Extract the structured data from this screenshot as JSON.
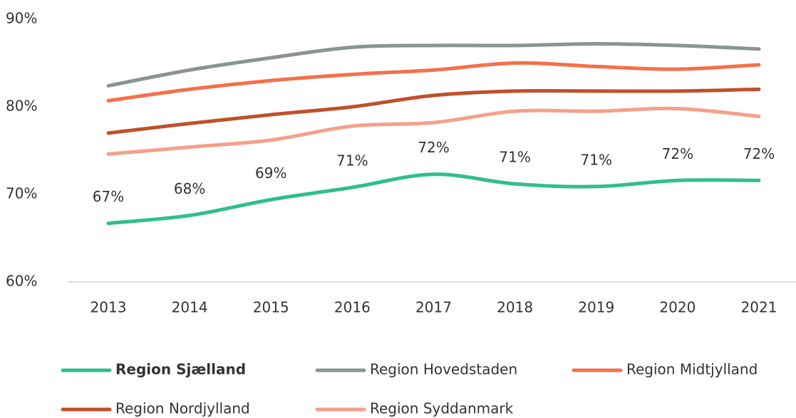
{
  "chart_data": {
    "type": "line",
    "x": [
      2013,
      2014,
      2015,
      2016,
      2017,
      2018,
      2019,
      2020,
      2021
    ],
    "ylim": [
      60,
      90
    ],
    "yticks": [
      {
        "value": 60,
        "label": "60%"
      },
      {
        "value": 70,
        "label": "70%"
      },
      {
        "value": 80,
        "label": "80%"
      },
      {
        "value": 90,
        "label": "90%"
      }
    ],
    "series": [
      {
        "name": "Region Sjælland",
        "color": "#2fbf8a",
        "values": [
          66.7,
          67.6,
          69.4,
          70.8,
          72.3,
          71.2,
          70.9,
          71.6,
          71.6
        ],
        "value_labels": [
          "67%",
          "68%",
          "69%",
          "71%",
          "72%",
          "71%",
          "71%",
          "72%",
          "72%"
        ]
      },
      {
        "name": "Region Hovedstaden",
        "color": "#8a9490",
        "values": [
          82.4,
          84.2,
          85.6,
          86.8,
          87.0,
          87.0,
          87.2,
          87.0,
          86.6
        ]
      },
      {
        "name": "Region Midtjylland",
        "color": "#f4704a",
        "values": [
          80.7,
          82.0,
          83.0,
          83.7,
          84.2,
          85.0,
          84.6,
          84.3,
          84.8
        ]
      },
      {
        "name": "Region Nordjylland",
        "color": "#c0502a",
        "values": [
          77.0,
          78.1,
          79.1,
          80.0,
          81.3,
          81.8,
          81.8,
          81.8,
          82.0
        ]
      },
      {
        "name": "Region Syddanmark",
        "color": "#f4a08a",
        "values": [
          74.6,
          75.4,
          76.2,
          77.8,
          78.2,
          79.5,
          79.5,
          79.8,
          78.9
        ]
      }
    ],
    "grid": false
  }
}
